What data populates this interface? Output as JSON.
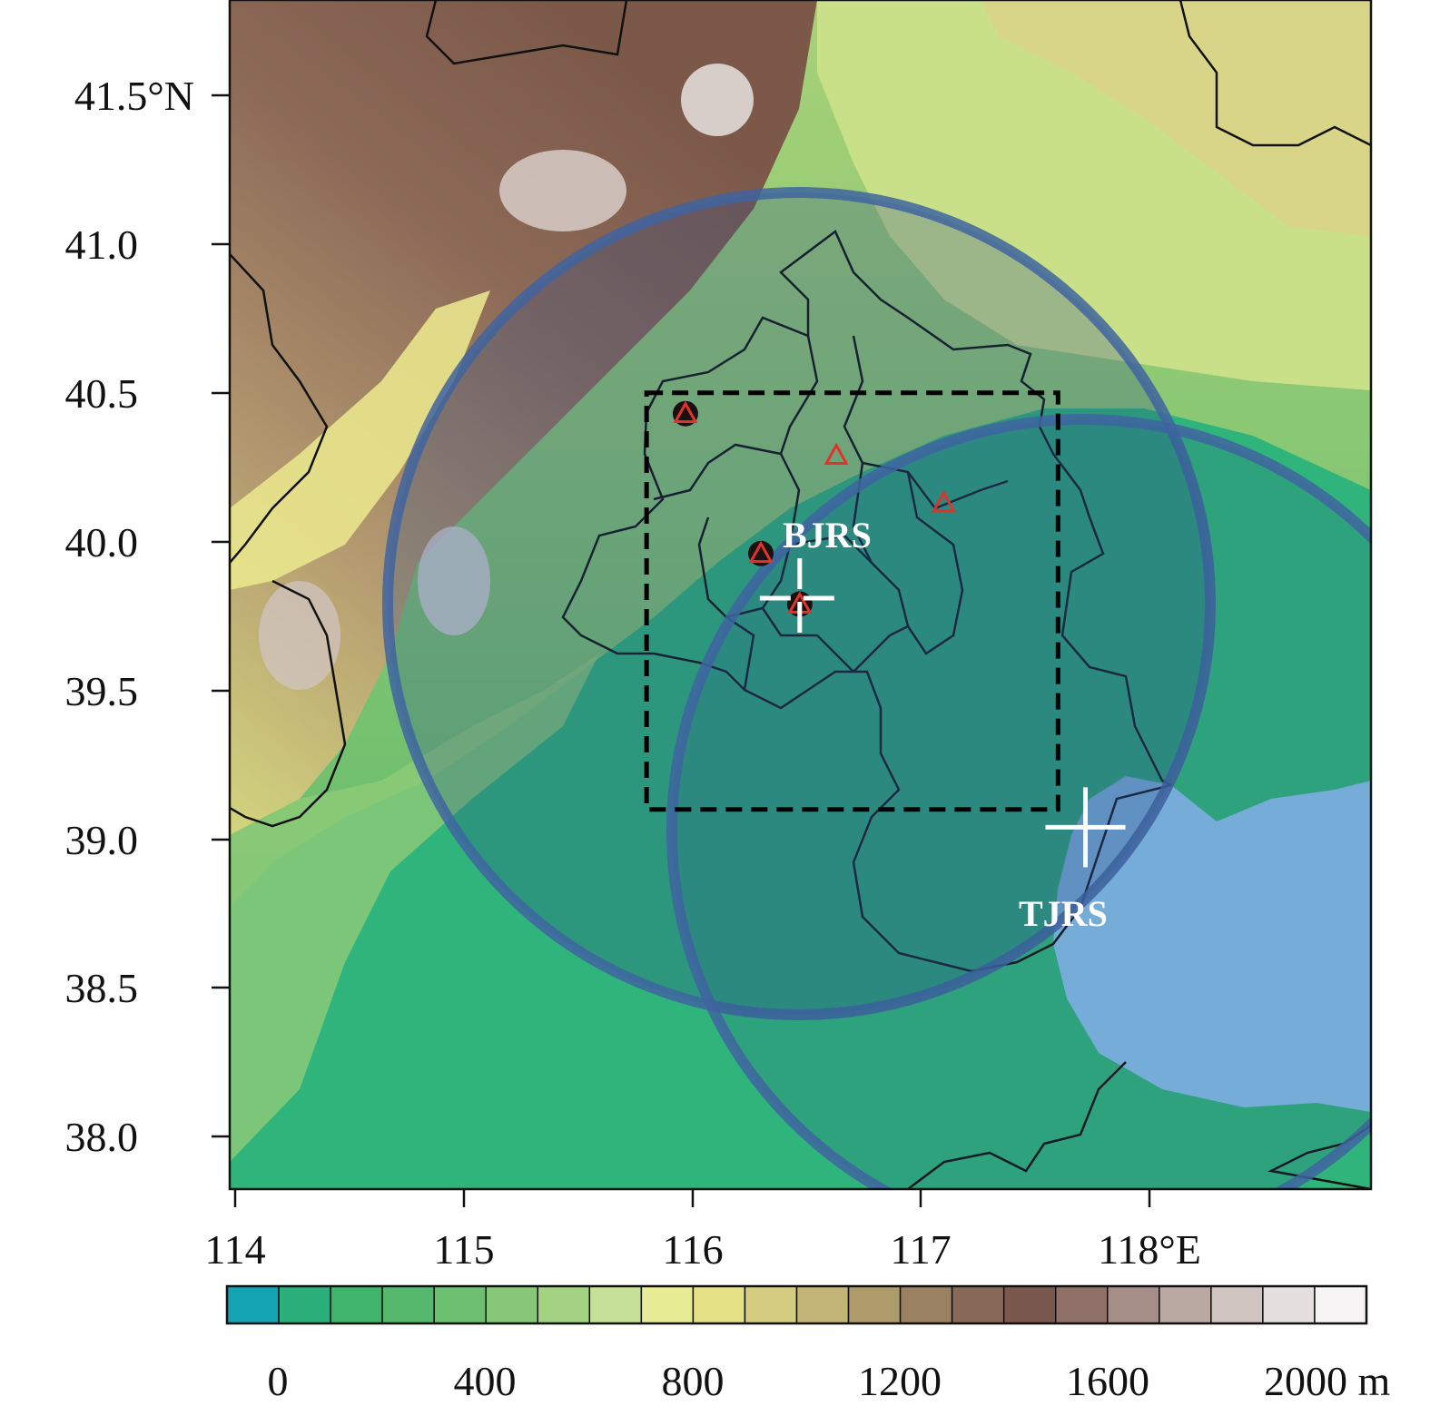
{
  "map": {
    "lat_ticks": [
      "41.5°N",
      "41.0",
      "40.5",
      "40.0",
      "39.5",
      "39.0",
      "38.5",
      "38.0"
    ],
    "lon_ticks": [
      "114",
      "115",
      "116",
      "117",
      "118°E"
    ],
    "radars": [
      {
        "label": "BJRS",
        "lon": 116.47,
        "lat": 39.81
      },
      {
        "label": "TJRS",
        "lon": 117.72,
        "lat": 39.04
      }
    ],
    "study_box": {
      "lon_min": 115.8,
      "lon_max": 117.6,
      "lat_min": 39.1,
      "lat_max": 40.5
    },
    "sites": [
      {
        "lon": 115.97,
        "lat": 40.43,
        "filled": true
      },
      {
        "lon": 116.3,
        "lat": 39.96,
        "filled": true
      },
      {
        "lon": 116.47,
        "lat": 39.79,
        "filled": true
      },
      {
        "lon": 116.63,
        "lat": 40.29,
        "filled": false
      },
      {
        "lon": 117.1,
        "lat": 40.13,
        "filled": false
      }
    ]
  },
  "colorbar": {
    "labels": [
      "0",
      "400",
      "800",
      "1200",
      "1600",
      "2000 m"
    ],
    "colors": [
      "#14a3b2",
      "#2bb07c",
      "#3fb46a",
      "#55b86c",
      "#6cc070",
      "#86c877",
      "#a4d283",
      "#c6e197",
      "#e8ec95",
      "#e4e187",
      "#d4cc80",
      "#c2b577",
      "#ad9b6c",
      "#9a8162",
      "#87695a",
      "#7b584e",
      "#8f7169",
      "#a58e88",
      "#baa8a3",
      "#d0c4c1",
      "#e5e0df",
      "#f6f4f4"
    ]
  },
  "colors": {
    "lowland": "#2fb57b",
    "sea": "#86c1ea",
    "radar_ring": "#3f64a0",
    "site_marker": "#e2332a"
  }
}
